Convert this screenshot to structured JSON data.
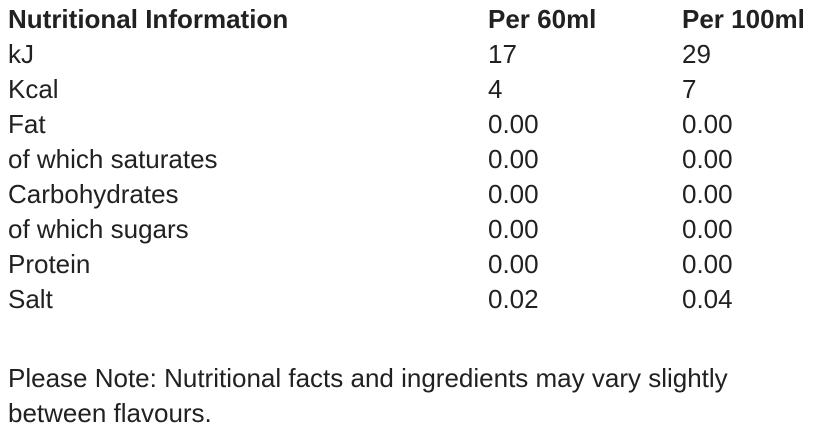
{
  "table": {
    "headers": {
      "col1": "Nutritional Information",
      "col2": "Per 60ml",
      "col3": "Per 100ml"
    },
    "rows": [
      {
        "label": "kJ",
        "per60ml": "17",
        "per100ml": "29"
      },
      {
        "label": "Kcal",
        "per60ml": "4",
        "per100ml": "7"
      },
      {
        "label": "Fat",
        "per60ml": "0.00",
        "per100ml": "0.00"
      },
      {
        "label": "of which saturates",
        "per60ml": "0.00",
        "per100ml": "0.00"
      },
      {
        "label": "Carbohydrates",
        "per60ml": "0.00",
        "per100ml": "0.00"
      },
      {
        "label": "of which sugars",
        "per60ml": "0.00",
        "per100ml": "0.00"
      },
      {
        "label": "Protein",
        "per60ml": "0.00",
        "per100ml": "0.00"
      },
      {
        "label": "Salt",
        "per60ml": "0.02",
        "per100ml": "0.04"
      }
    ]
  },
  "note": {
    "line1": "Please Note: Nutritional facts and ingredients may vary slightly",
    "line2": "between flavours."
  },
  "colors": {
    "text": "#212121",
    "background": "#ffffff"
  }
}
